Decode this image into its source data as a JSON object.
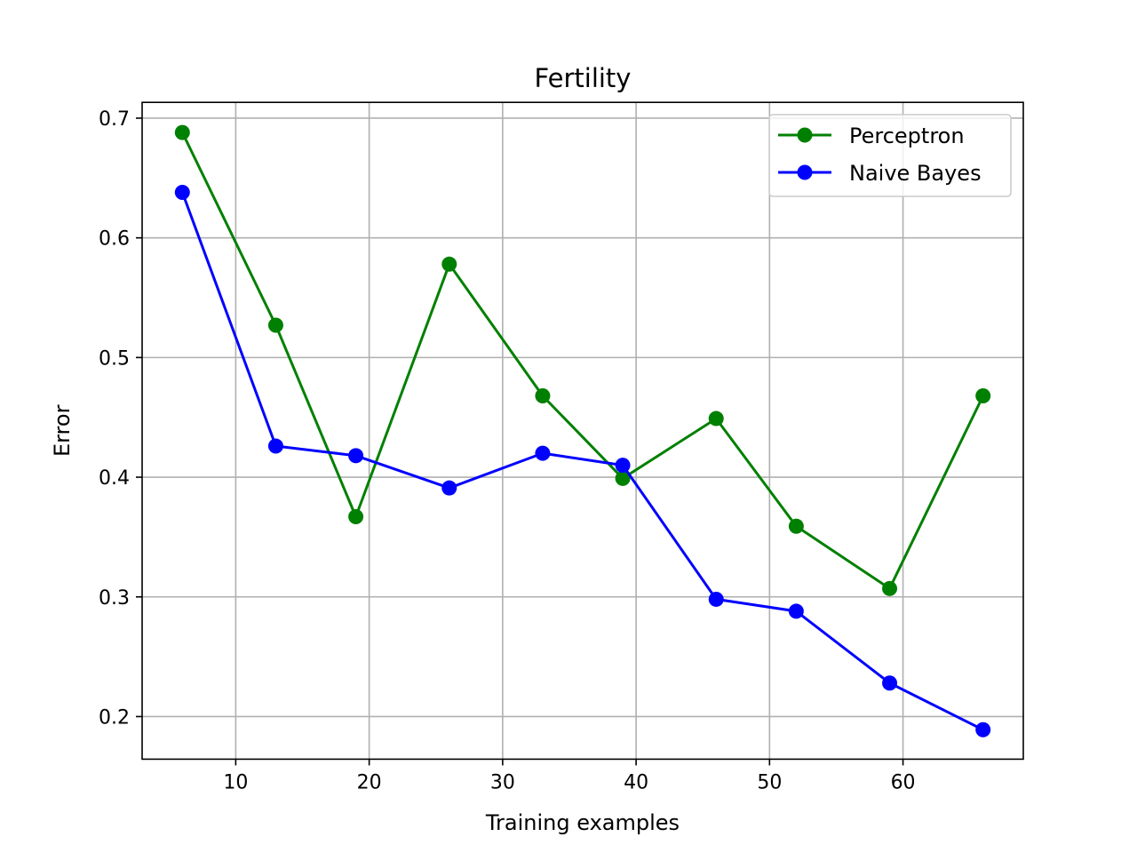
{
  "chart_data": {
    "type": "line",
    "title": "Fertility",
    "xlabel": "Training examples",
    "ylabel": "Error",
    "xlim": [
      2.985,
      69.015
    ],
    "ylim": [
      0.1644,
      0.7132
    ],
    "xticks": [
      10,
      20,
      30,
      40,
      50,
      60
    ],
    "yticks": [
      0.2,
      0.3,
      0.4,
      0.5,
      0.6,
      0.7
    ],
    "xtick_labels": [
      "10",
      "20",
      "30",
      "40",
      "50",
      "60"
    ],
    "ytick_labels": [
      "0.2",
      "0.3",
      "0.4",
      "0.5",
      "0.6",
      "0.7"
    ],
    "grid": true,
    "legend_position": "top-right",
    "x": [
      6,
      13,
      19,
      26,
      33,
      39,
      46,
      52,
      59,
      66
    ],
    "series": [
      {
        "name": "Perceptron",
        "color": "#008000",
        "marker": "circle",
        "values": [
          0.688,
          0.527,
          0.367,
          0.578,
          0.468,
          0.399,
          0.449,
          0.359,
          0.307,
          0.468
        ]
      },
      {
        "name": "Naive Bayes",
        "color": "#0000ff",
        "marker": "circle",
        "values": [
          0.638,
          0.426,
          0.418,
          0.391,
          0.42,
          0.41,
          0.298,
          0.288,
          0.228,
          0.189
        ]
      }
    ]
  }
}
